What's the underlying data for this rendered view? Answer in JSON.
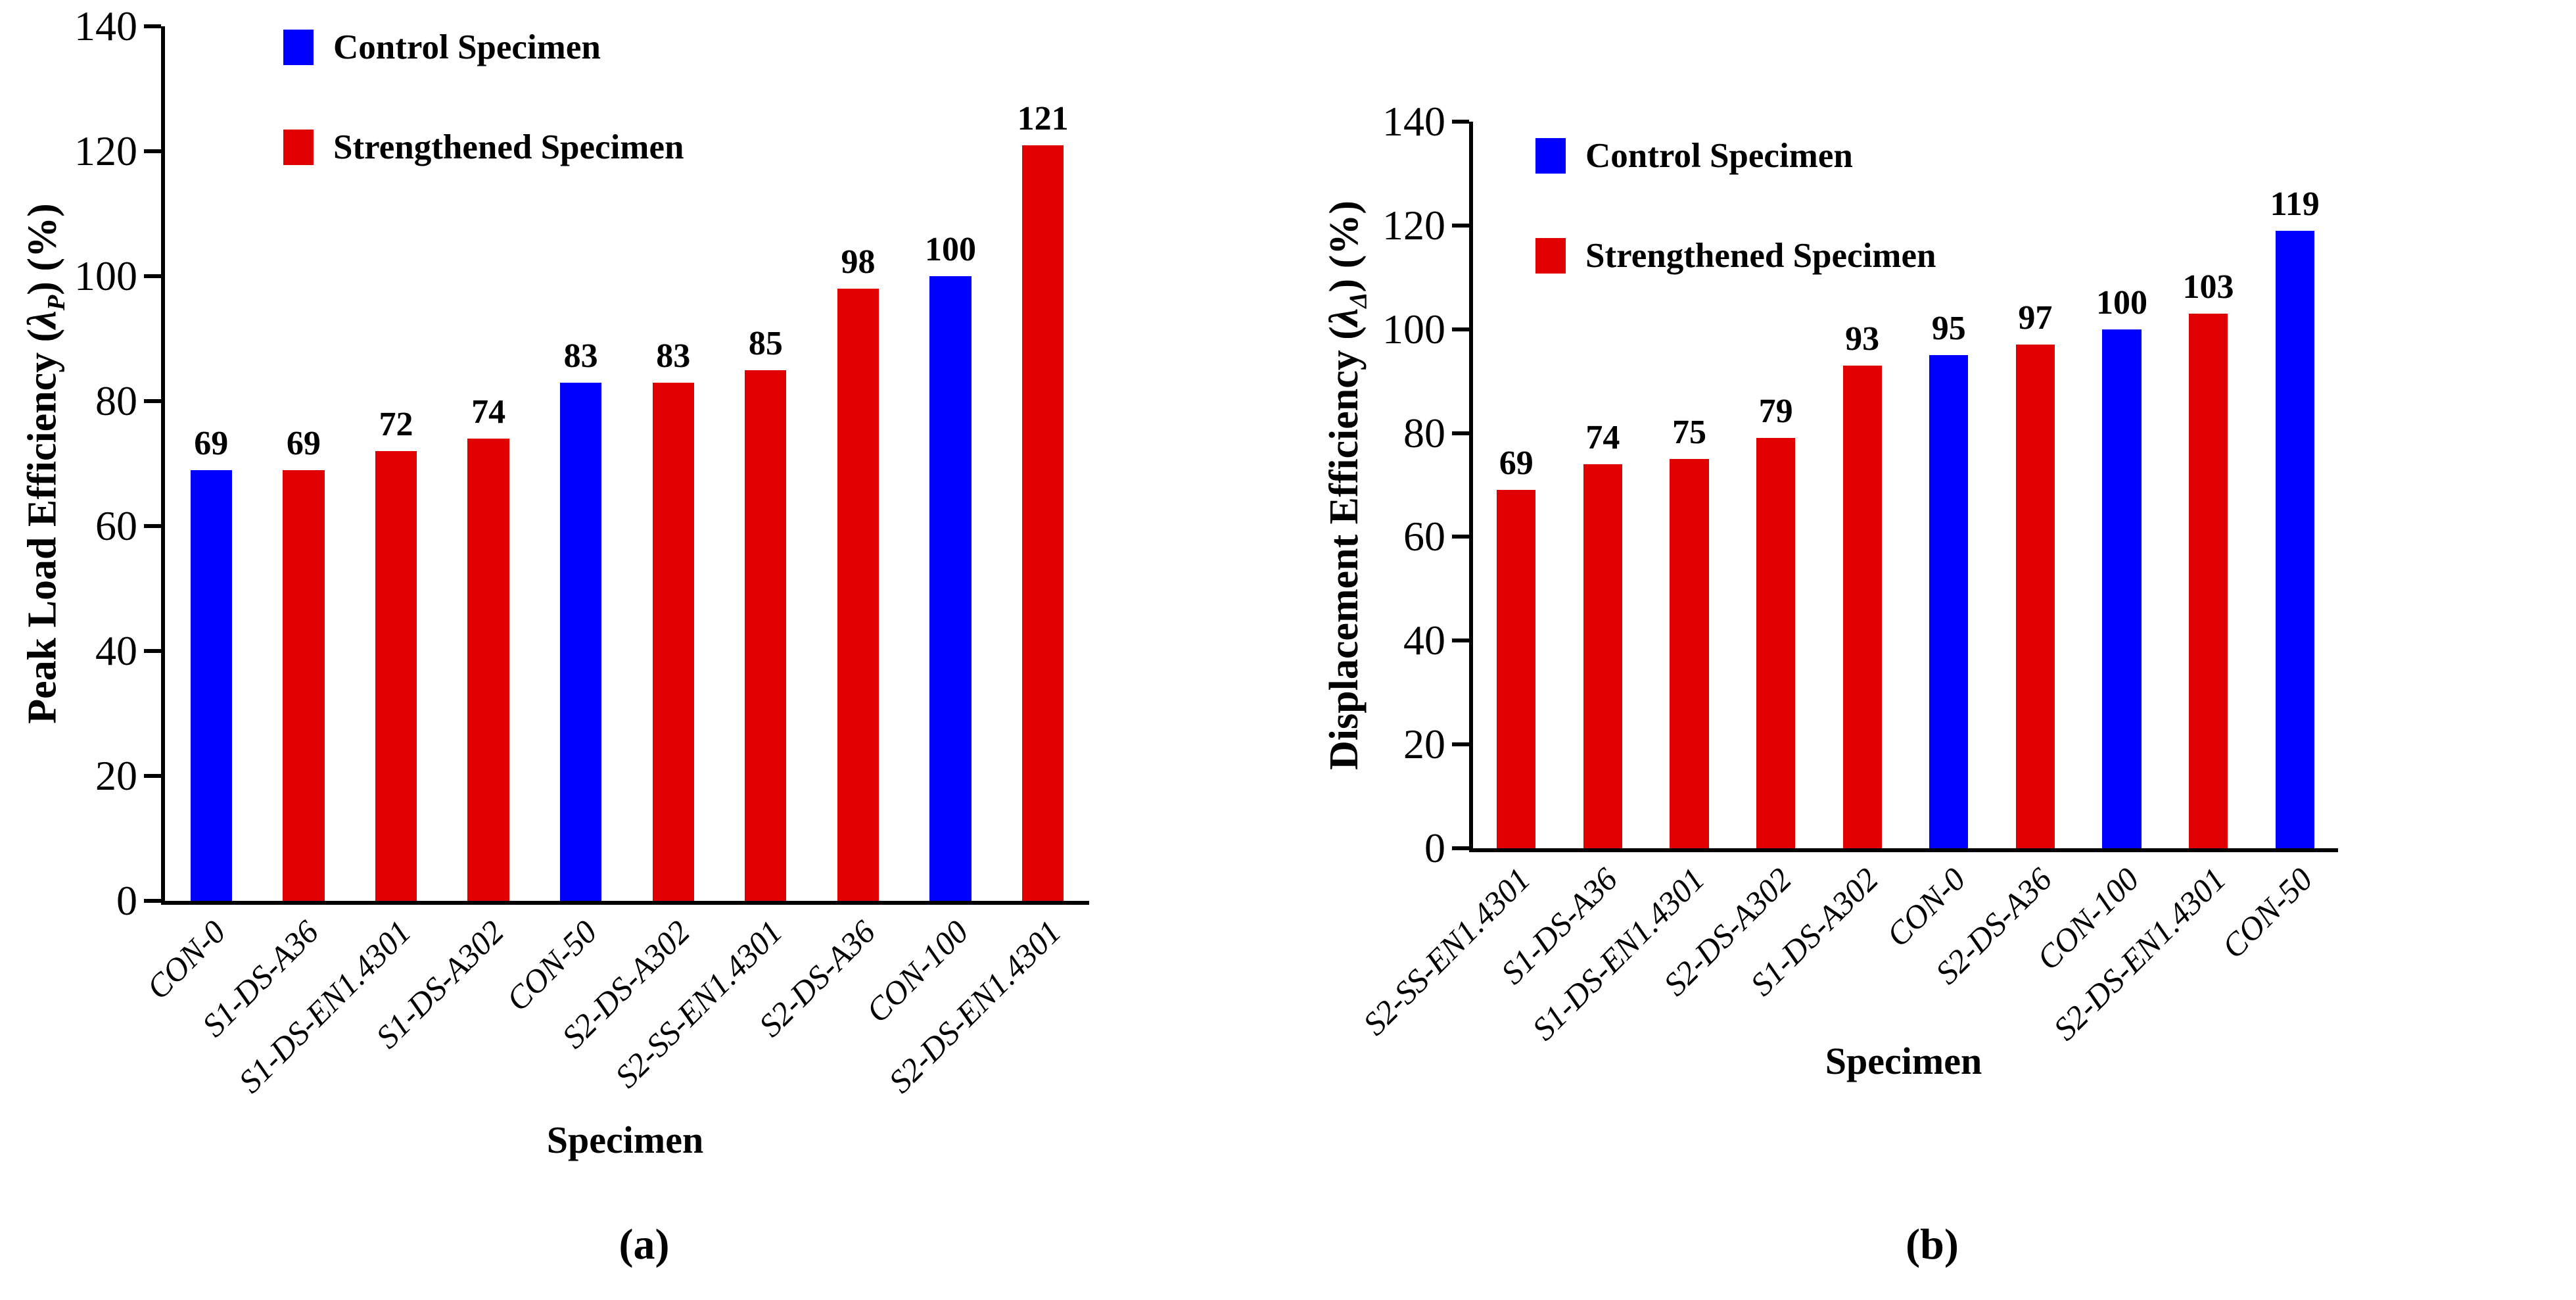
{
  "colors": {
    "control": "#0000FF",
    "strengthened": "#E00000",
    "axis": "#000000"
  },
  "legend": {
    "control_label": "Control Specimen",
    "strengthened_label": "Strengthened Specimen"
  },
  "chart_data": [
    {
      "id": "a",
      "type": "bar",
      "caption": "(a)",
      "xlabel": "Specimen",
      "ylabel": "Peak Load Efficiency (λP) (%)",
      "ylabel_parts": {
        "prefix": "Peak Load Efficiency (",
        "symbol": "λ",
        "subscript": "P",
        "suffix": ") (%)"
      },
      "ylim": [
        0,
        140
      ],
      "yticks": [
        0,
        20,
        40,
        60,
        80,
        100,
        120,
        140
      ],
      "grid": false,
      "legend_position": "upper-left",
      "categories": [
        "CON-0",
        "S1-DS-A36",
        "S1-DS-EN1.4301",
        "S1-DS-A302",
        "CON-50",
        "S2-DS-A302",
        "S2-SS-EN1.4301",
        "S2-DS-A36",
        "CON-100",
        "S2-DS-EN1.4301"
      ],
      "values": [
        69,
        69,
        72,
        74,
        83,
        83,
        85,
        98,
        100,
        121
      ],
      "series_type": [
        "control",
        "strengthened",
        "strengthened",
        "strengthened",
        "control",
        "strengthened",
        "strengthened",
        "strengthened",
        "control",
        "strengthened"
      ]
    },
    {
      "id": "b",
      "type": "bar",
      "caption": "(b)",
      "xlabel": "Specimen",
      "ylabel": "Displacement Efficiency (λΔ) (%)",
      "ylabel_parts": {
        "prefix": "Displacement Efficiency (",
        "symbol": "λ",
        "subscript": "Δ",
        "suffix": ") (%)"
      },
      "ylim": [
        0,
        140
      ],
      "yticks": [
        0,
        20,
        40,
        60,
        80,
        100,
        120,
        140
      ],
      "grid": false,
      "legend_position": "upper-left",
      "categories": [
        "S2-SS-EN1.4301",
        "S1-DS-A36",
        "S1-DS-EN1.4301",
        "S2-DS-A302",
        "S1-DS-A302",
        "CON-0",
        "S2-DS-A36",
        "CON-100",
        "S2-DS-EN1.4301",
        "CON-50"
      ],
      "values": [
        69,
        74,
        75,
        79,
        93,
        95,
        97,
        100,
        103,
        119
      ],
      "series_type": [
        "strengthened",
        "strengthened",
        "strengthened",
        "strengthened",
        "strengthened",
        "control",
        "strengthened",
        "control",
        "strengthened",
        "control"
      ]
    }
  ]
}
